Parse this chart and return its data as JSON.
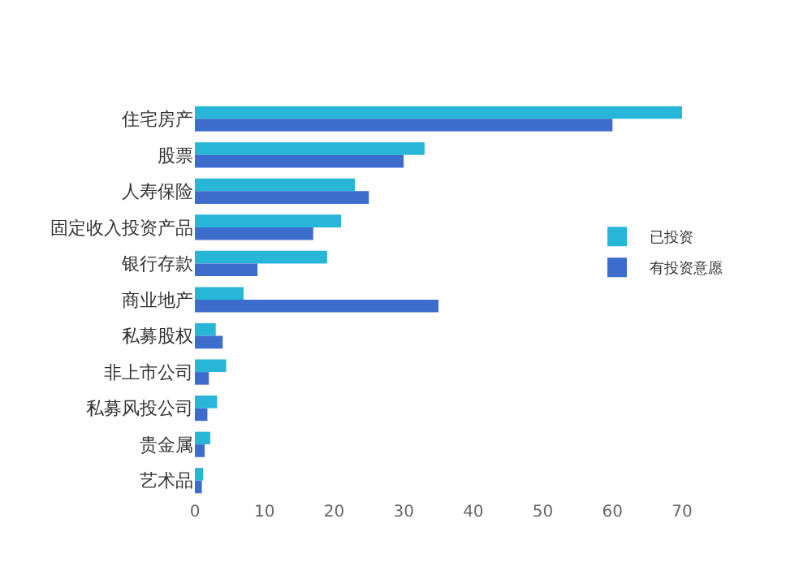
{
  "chart_data": {
    "type": "bar",
    "orientation": "horizontal",
    "categories": [
      "住宅房产",
      "股票",
      "人寿保险",
      "固定收入投资产品",
      "银行存款",
      "商业地产",
      "私募股权",
      "非上市公司",
      "私募风投公司",
      "贵金属",
      "艺术品"
    ],
    "series": [
      {
        "name": "已投资",
        "color": "#27b6d8",
        "values": [
          70,
          33,
          23,
          21,
          19,
          7,
          3,
          4.5,
          3.2,
          2.2,
          1.2
        ]
      },
      {
        "name": "有投资意愿",
        "color": "#3c6ccc",
        "values": [
          60,
          30,
          25,
          17,
          9,
          35,
          4,
          2,
          1.8,
          1.4,
          1
        ]
      }
    ],
    "xlim": [
      0,
      70
    ],
    "xticks": [
      0,
      10,
      20,
      30,
      40,
      50,
      60,
      70
    ],
    "grid": false,
    "legend": "right"
  }
}
